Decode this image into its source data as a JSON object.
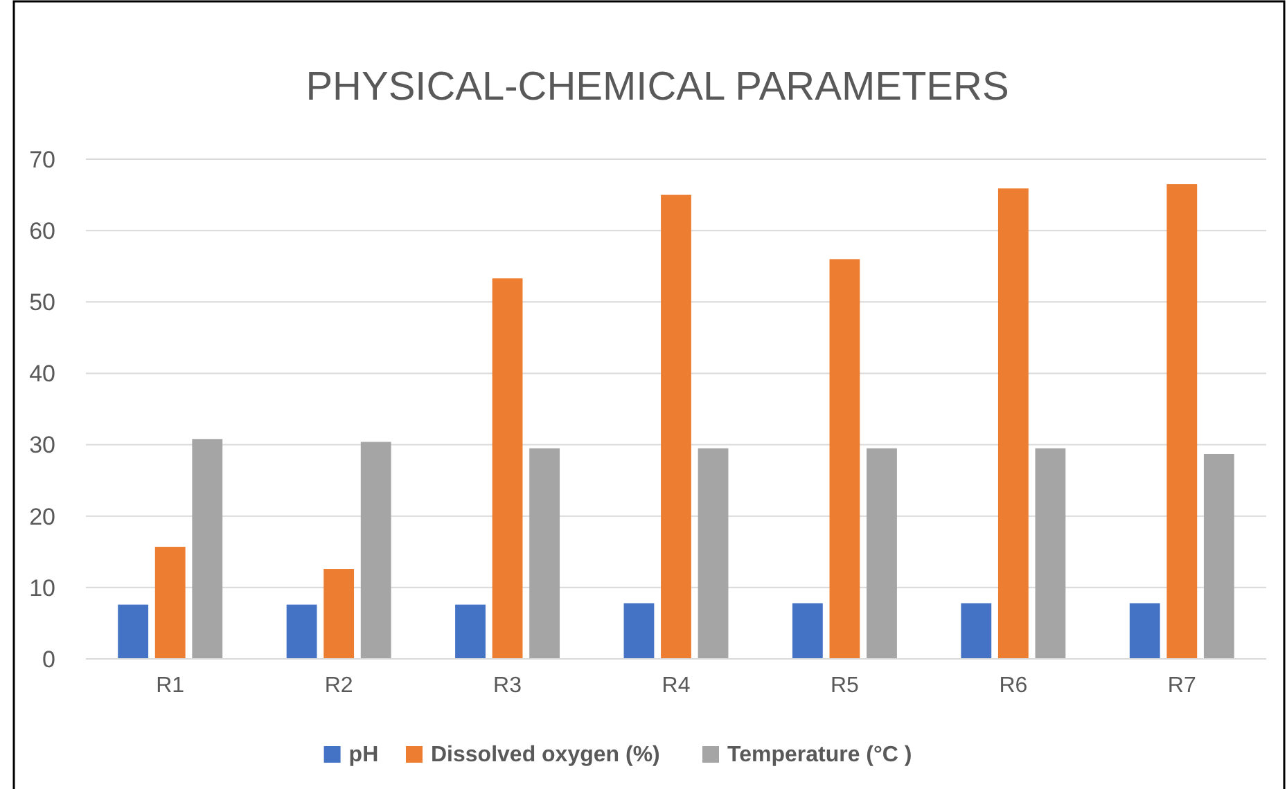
{
  "chart_data": {
    "type": "bar",
    "title": "PHYSICAL-CHEMICAL PARAMETERS",
    "categories": [
      "R1",
      "R2",
      "R3",
      "R4",
      "R5",
      "R6",
      "R7"
    ],
    "series": [
      {
        "name": "pH",
        "color": "#4472c4",
        "values": [
          7.6,
          7.6,
          7.6,
          7.8,
          7.8,
          7.8,
          7.8
        ]
      },
      {
        "name": "Dissolved oxygen (%)",
        "color": "#ed7d31",
        "values": [
          15.7,
          12.6,
          53.3,
          65,
          56,
          65.9,
          66.5
        ]
      },
      {
        "name": "Temperature (°C )",
        "color": "#a5a5a5",
        "values": [
          30.8,
          30.4,
          29.5,
          29.5,
          29.5,
          29.5,
          28.7
        ]
      }
    ],
    "ylim": [
      0,
      70
    ],
    "yticks": [
      0,
      10,
      20,
      30,
      40,
      50,
      60,
      70
    ],
    "grid": "y",
    "legend": "bottom"
  }
}
